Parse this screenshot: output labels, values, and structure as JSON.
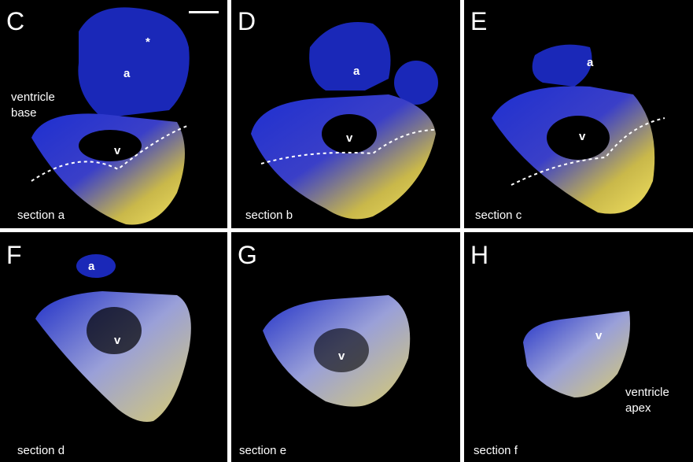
{
  "panels": [
    {
      "letter": "C",
      "section": "section a",
      "labels": [
        "*",
        "a",
        "v"
      ],
      "note": [
        "ventricle",
        "base"
      ]
    },
    {
      "letter": "D",
      "section": "section b",
      "labels": [
        "a",
        "v"
      ]
    },
    {
      "letter": "E",
      "section": "section c",
      "labels": [
        "a",
        "v"
      ]
    },
    {
      "letter": "F",
      "section": "section d",
      "labels": [
        "a",
        "v"
      ]
    },
    {
      "letter": "G",
      "section": "section e",
      "labels": [
        "v"
      ]
    },
    {
      "letter": "H",
      "section": "section f",
      "labels": [
        "v"
      ],
      "note": [
        "ventricle",
        "apex"
      ]
    }
  ]
}
